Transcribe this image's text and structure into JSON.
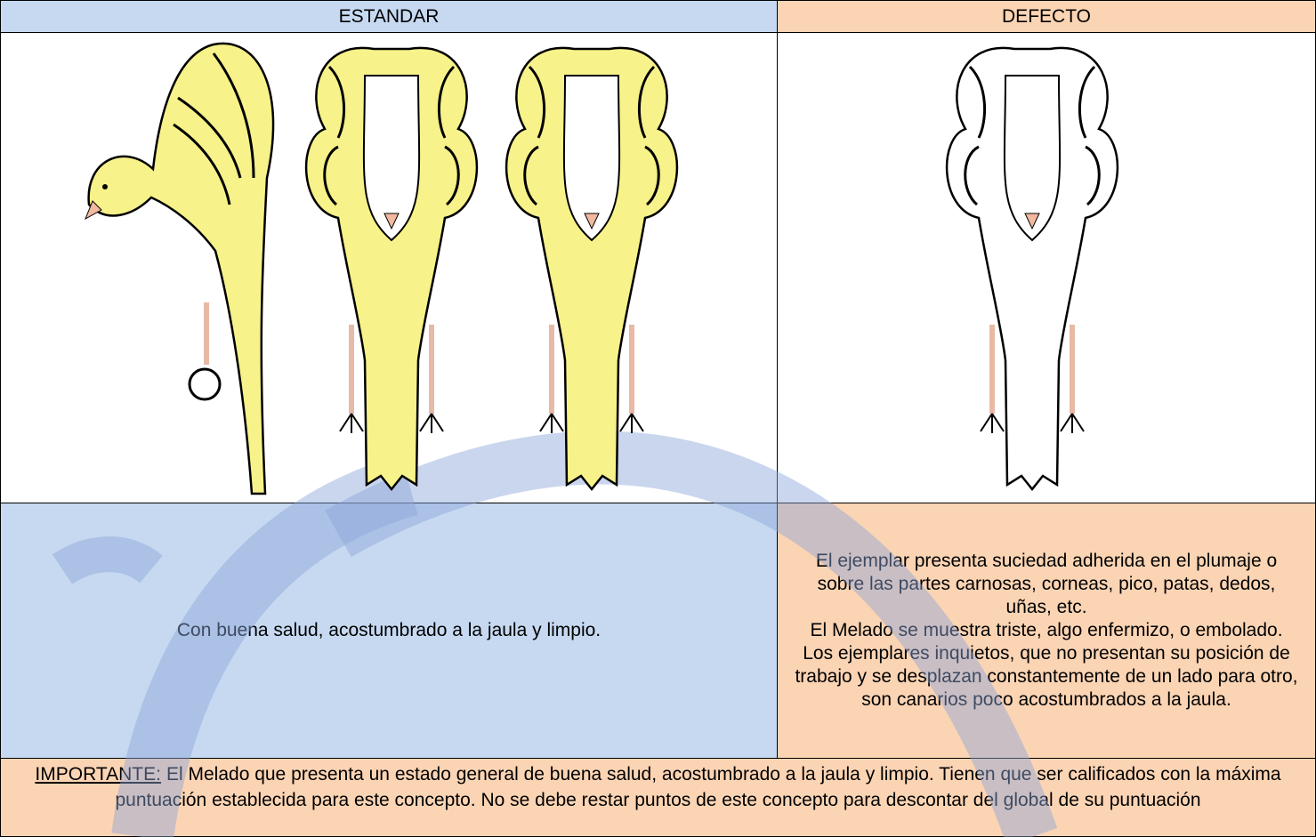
{
  "table": {
    "headers": [
      "ESTANDAR",
      "DEFECTO"
    ],
    "standard_text": "Con buena salud, acostumbrado a la jaula y limpio.",
    "defect_paragraphs": [
      "El ejemplar presenta suciedad adherida en el plumaje o sobre las partes carnosas, corneas, pico, patas, dedos, uñas, etc.",
      "El Melado se muestra triste, algo enfermizo, o embolado.",
      "Los ejemplares inquietos, que no presentan su posición de trabajo y se desplazan constantemente de un lado para otro, son canarios poco acostumbrados a la jaula."
    ],
    "note": {
      "label": "IMPORTANTE:",
      "text": "El Melado que presenta un estado general de buena salud, acostumbrado a la jaula y limpio. Tienen que ser calificados con la máxima puntuación establecida para este concepto. No se debe restar puntos de este concepto para descontar del global de su puntuación"
    }
  }
}
